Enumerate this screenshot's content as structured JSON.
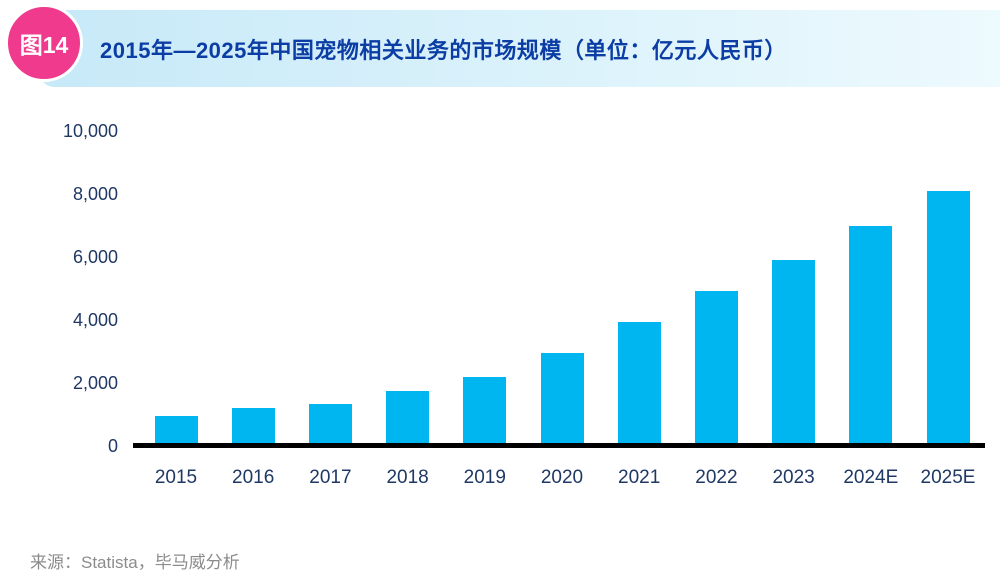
{
  "figure_badge": {
    "label": "图14"
  },
  "header": {
    "title": "2015年—2025年中国宠物相关业务的市场规模（单位：亿元人民币）"
  },
  "source": {
    "text": "来源：Statista，毕马威分析"
  },
  "colors": {
    "bar": "#00B6F1",
    "badge": "#EF3A8D",
    "banner_start": "#C7E9F8",
    "banner_end": "#EDFAFE",
    "title_text": "#0B3DA5",
    "axis_label": "#1F3864",
    "axis_line": "#000000",
    "source_text": "#8C8C8C"
  },
  "chart_data": {
    "type": "bar",
    "title": "2015年—2025年中国宠物相关业务的市场规模（单位：亿元人民币）",
    "categories": [
      "2015",
      "2016",
      "2017",
      "2018",
      "2019",
      "2020",
      "2021",
      "2022",
      "2023",
      "2024E",
      "2025E"
    ],
    "values": [
      950,
      1200,
      1320,
      1750,
      2200,
      2950,
      3940,
      4920,
      5900,
      7000,
      8100
    ],
    "xlabel": "",
    "ylabel": "亿元人民币",
    "ylim": [
      0,
      10000
    ],
    "yticks": [
      {
        "value": 0,
        "label": "0"
      },
      {
        "value": 2000,
        "label": "2,000"
      },
      {
        "value": 4000,
        "label": "4,000"
      },
      {
        "value": 6000,
        "label": "6,000"
      },
      {
        "value": 8000,
        "label": "8,000"
      },
      {
        "value": 10000,
        "label": "10,000"
      }
    ],
    "grid": false,
    "legend": false
  }
}
